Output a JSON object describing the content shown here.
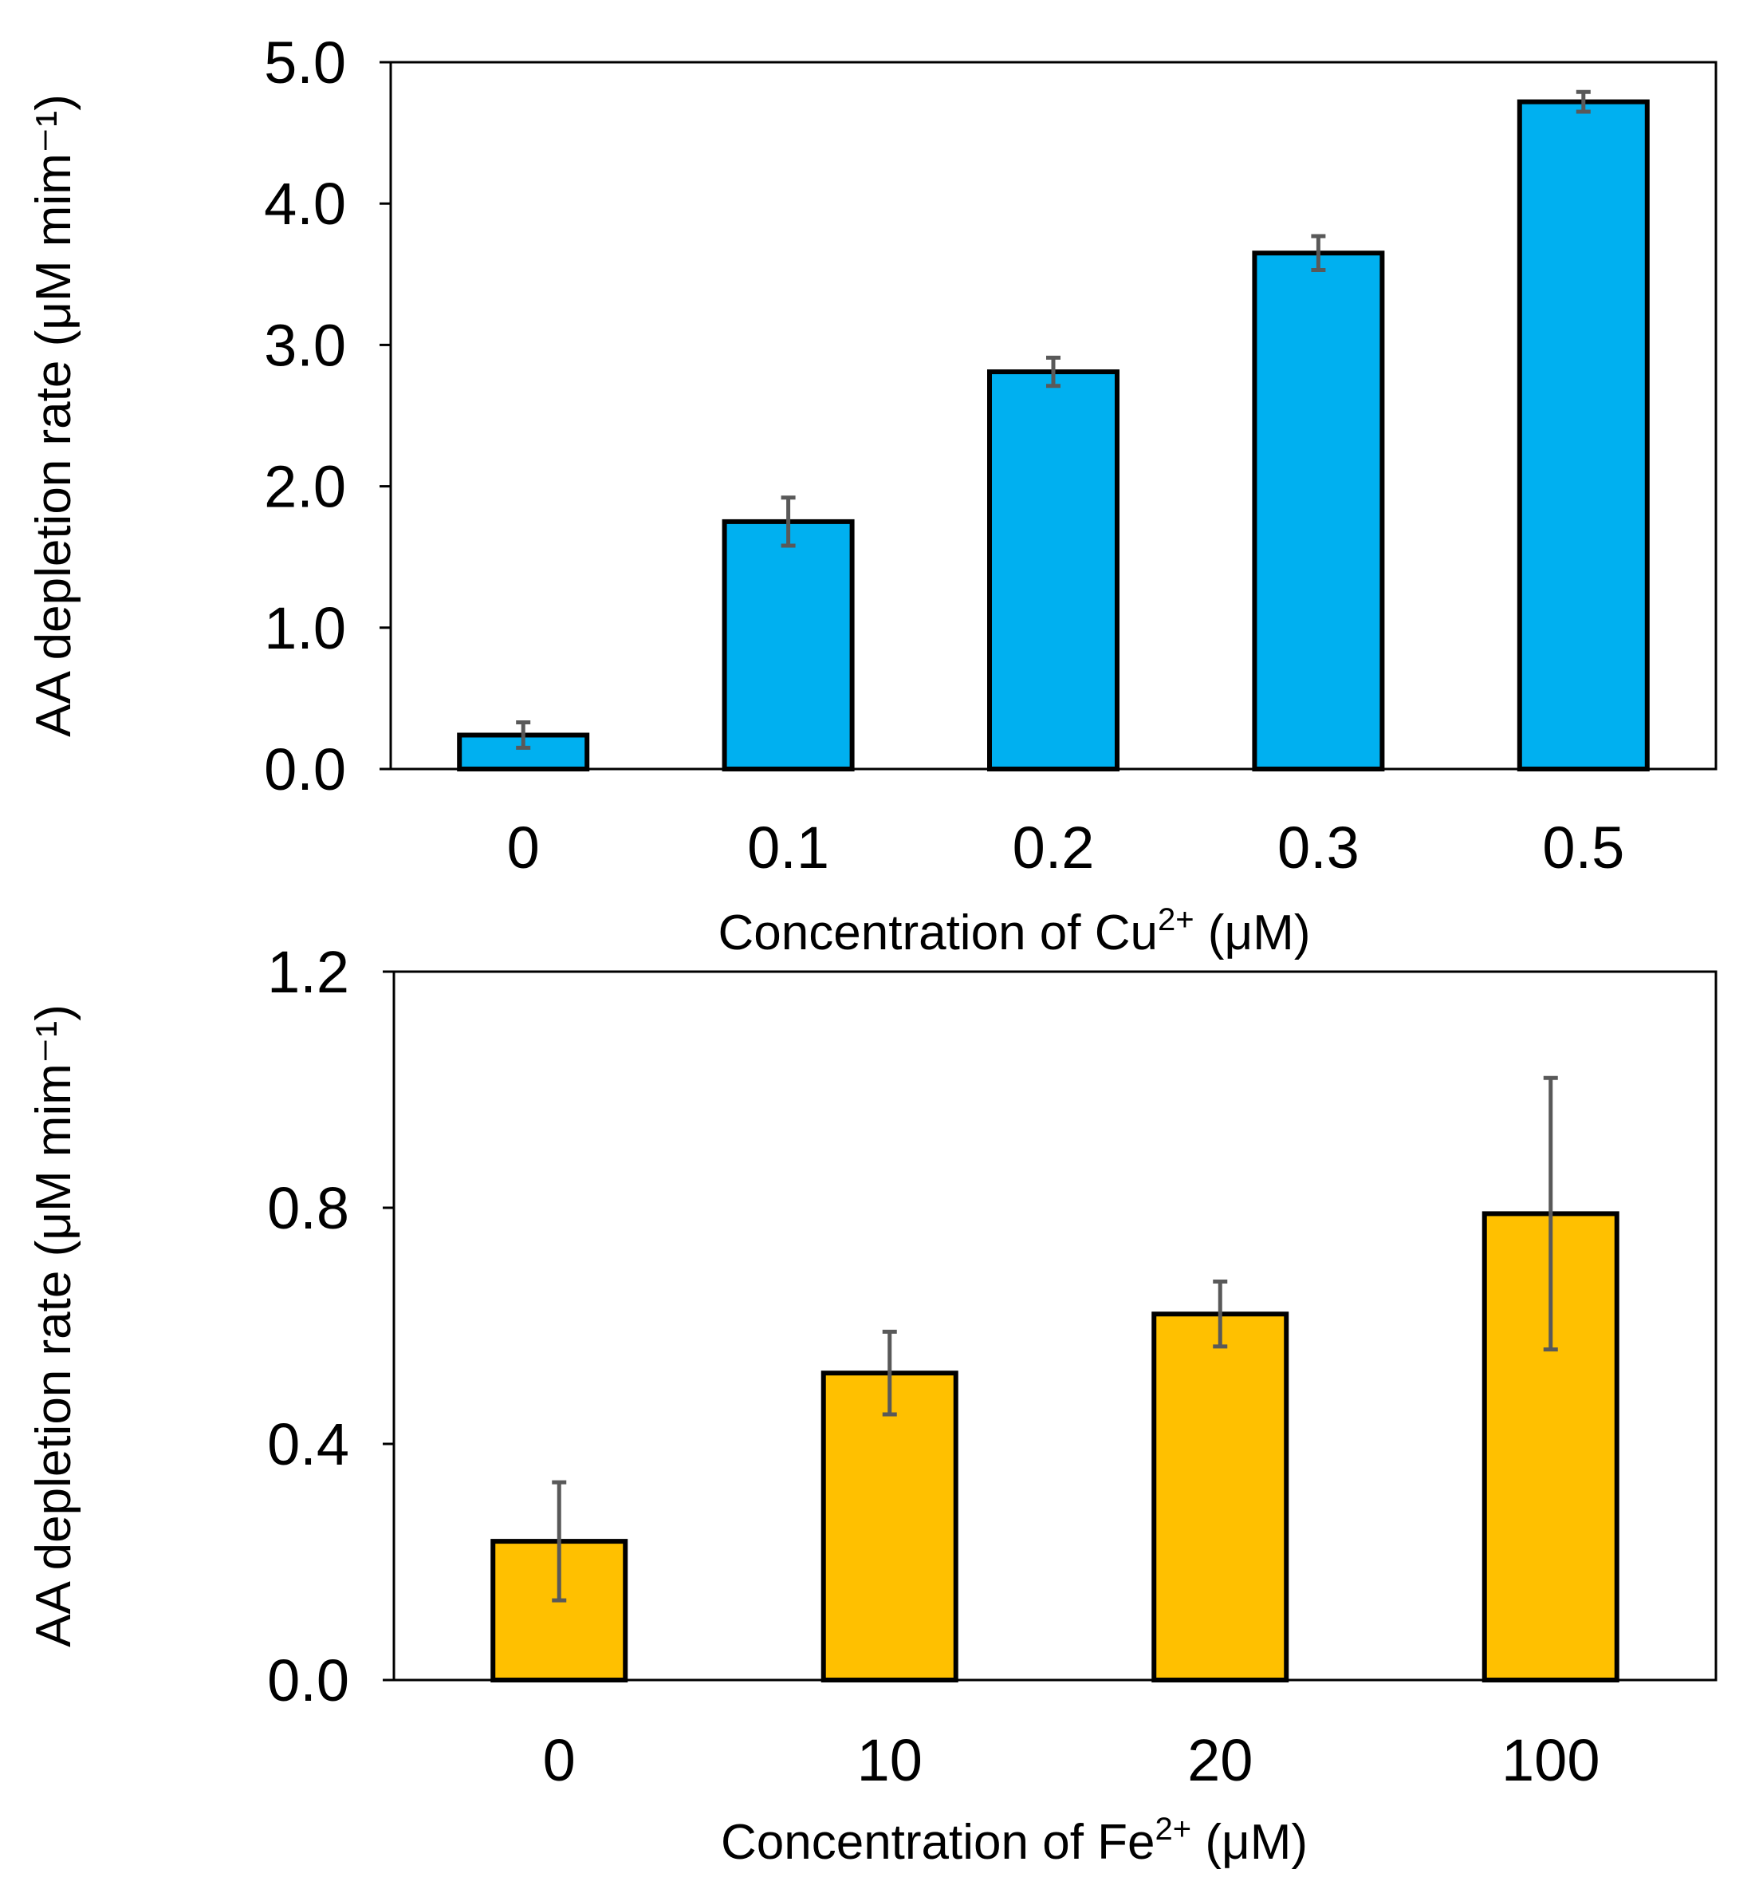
{
  "chart_data": [
    {
      "type": "bar",
      "ylabel": "AA depletion rate (μM mim⁻¹)",
      "xlabel": "Concentration of Cu²⁺ (μM)",
      "xlabel_main": "Concentration of Cu",
      "xlabel_sup": "2+",
      "xlabel_tail": " (μM)",
      "categories": [
        "0",
        "0.1",
        "0.2",
        "0.3",
        "0.5"
      ],
      "values": [
        0.24,
        1.75,
        2.81,
        3.65,
        4.72
      ],
      "errors": [
        0.09,
        0.17,
        0.1,
        0.12,
        0.07
      ],
      "ylim": [
        0,
        5.0
      ],
      "yticks": [
        "0.0",
        "1.0",
        "2.0",
        "3.0",
        "4.0",
        "5.0"
      ],
      "bar_color": "#00B0F0",
      "error_color": "#595959"
    },
    {
      "type": "bar",
      "ylabel": "AA depletion rate (μM mim⁻¹)",
      "xlabel": "Concentration of Fe²⁺ (μM)",
      "xlabel_main": "Concentration of Fe",
      "xlabel_sup": "2+",
      "xlabel_tail": " (μM)",
      "categories": [
        "0",
        "10",
        "20",
        "100"
      ],
      "values": [
        0.235,
        0.52,
        0.62,
        0.79
      ],
      "errors": [
        0.1,
        0.07,
        0.055,
        0.23
      ],
      "ylim": [
        0,
        1.2
      ],
      "yticks": [
        "0.0",
        "0.4",
        "0.8",
        "1.2"
      ],
      "bar_color": "#FFC000",
      "error_color": "#595959"
    }
  ]
}
